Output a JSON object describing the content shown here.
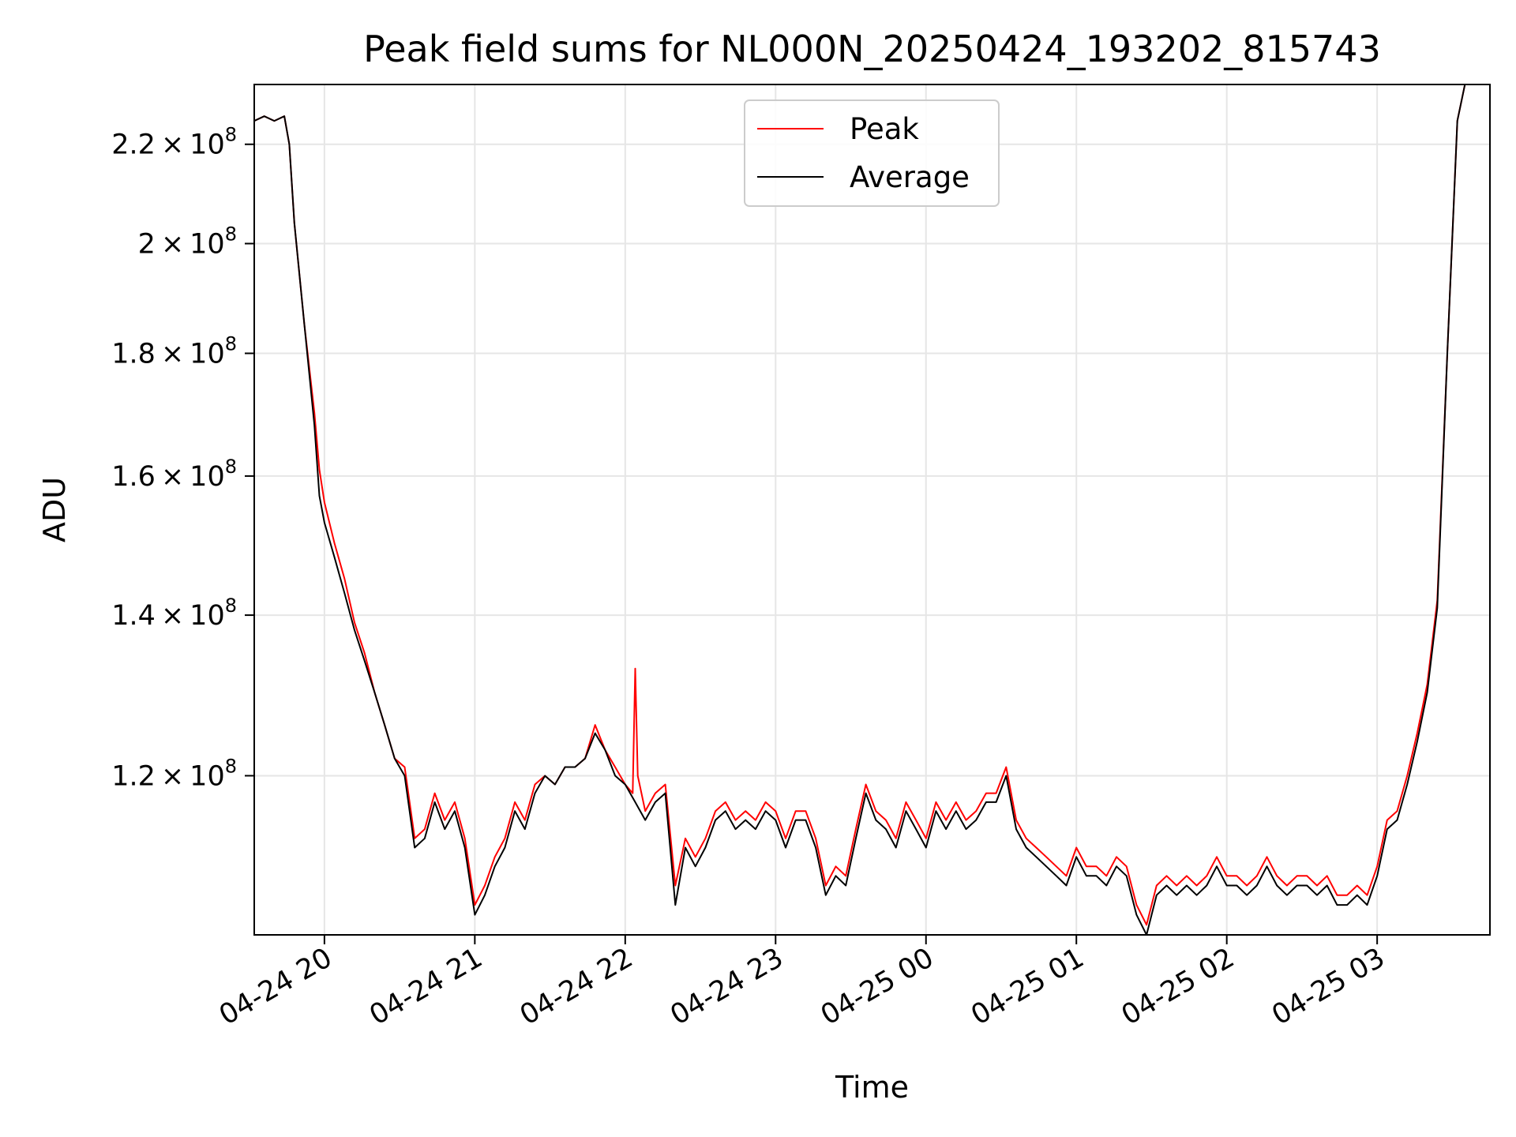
{
  "chart_data": {
    "type": "line",
    "title": "Peak field sums for NL000N_20250424_193202_815743",
    "xlabel": "Time",
    "ylabel": "ADU",
    "xlim": [
      "2025-04-24 19:32",
      "2025-04-25 03:45"
    ],
    "ylim": [
      103000000,
      233000000
    ],
    "y_scale": "log",
    "grid": true,
    "legend_position": "upper center",
    "x_ticks": [
      {
        "value": "2025-04-24 20:00",
        "label": "04-24 20"
      },
      {
        "value": "2025-04-24 21:00",
        "label": "04-24 21"
      },
      {
        "value": "2025-04-24 22:00",
        "label": "04-24 22"
      },
      {
        "value": "2025-04-24 23:00",
        "label": "04-24 23"
      },
      {
        "value": "2025-04-25 00:00",
        "label": "04-25 00"
      },
      {
        "value": "2025-04-25 01:00",
        "label": "04-25 01"
      },
      {
        "value": "2025-04-25 02:00",
        "label": "04-25 02"
      },
      {
        "value": "2025-04-25 03:00",
        "label": "04-25 03"
      }
    ],
    "y_ticks": [
      {
        "value": 120000000,
        "mantissa": "1.2",
        "base": "10",
        "exp": "8"
      },
      {
        "value": 140000000,
        "mantissa": "1.4",
        "base": "10",
        "exp": "8"
      },
      {
        "value": 160000000,
        "mantissa": "1.6",
        "base": "10",
        "exp": "8"
      },
      {
        "value": 180000000,
        "mantissa": "1.8",
        "base": "10",
        "exp": "8"
      },
      {
        "value": 200000000,
        "mantissa": "2",
        "base": "10",
        "exp": "8"
      },
      {
        "value": 220000000,
        "mantissa": "2.2",
        "base": "10",
        "exp": "8"
      }
    ],
    "series": [
      {
        "name": "Peak",
        "color": "#ff0000",
        "x": [
          "2025-04-24 19:32",
          "2025-04-24 19:36",
          "2025-04-24 19:40",
          "2025-04-24 19:44",
          "2025-04-24 19:46",
          "2025-04-24 19:48",
          "2025-04-24 19:52",
          "2025-04-24 19:56",
          "2025-04-24 19:58",
          "2025-04-24 20:00",
          "2025-04-24 20:04",
          "2025-04-24 20:08",
          "2025-04-24 20:12",
          "2025-04-24 20:16",
          "2025-04-24 20:20",
          "2025-04-24 20:24",
          "2025-04-24 20:28",
          "2025-04-24 20:32",
          "2025-04-24 20:36",
          "2025-04-24 20:40",
          "2025-04-24 20:44",
          "2025-04-24 20:48",
          "2025-04-24 20:52",
          "2025-04-24 20:56",
          "2025-04-24 21:00",
          "2025-04-24 21:04",
          "2025-04-24 21:08",
          "2025-04-24 21:12",
          "2025-04-24 21:16",
          "2025-04-24 21:20",
          "2025-04-24 21:24",
          "2025-04-24 21:28",
          "2025-04-24 21:32",
          "2025-04-24 21:36",
          "2025-04-24 21:40",
          "2025-04-24 21:44",
          "2025-04-24 21:48",
          "2025-04-24 21:52",
          "2025-04-24 21:56",
          "2025-04-24 22:00",
          "2025-04-24 22:03",
          "2025-04-24 22:04",
          "2025-04-24 22:05",
          "2025-04-24 22:08",
          "2025-04-24 22:12",
          "2025-04-24 22:16",
          "2025-04-24 22:20",
          "2025-04-24 22:24",
          "2025-04-24 22:28",
          "2025-04-24 22:32",
          "2025-04-24 22:36",
          "2025-04-24 22:40",
          "2025-04-24 22:44",
          "2025-04-24 22:48",
          "2025-04-24 22:52",
          "2025-04-24 22:56",
          "2025-04-24 23:00",
          "2025-04-24 23:04",
          "2025-04-24 23:08",
          "2025-04-24 23:12",
          "2025-04-24 23:16",
          "2025-04-24 23:20",
          "2025-04-24 23:24",
          "2025-04-24 23:28",
          "2025-04-24 23:32",
          "2025-04-24 23:36",
          "2025-04-24 23:40",
          "2025-04-24 23:44",
          "2025-04-24 23:48",
          "2025-04-24 23:52",
          "2025-04-24 23:56",
          "2025-04-25 00:00",
          "2025-04-25 00:04",
          "2025-04-25 00:08",
          "2025-04-25 00:12",
          "2025-04-25 00:16",
          "2025-04-25 00:20",
          "2025-04-25 00:24",
          "2025-04-25 00:28",
          "2025-04-25 00:32",
          "2025-04-25 00:36",
          "2025-04-25 00:40",
          "2025-04-25 00:44",
          "2025-04-25 00:48",
          "2025-04-25 00:52",
          "2025-04-25 00:56",
          "2025-04-25 01:00",
          "2025-04-25 01:04",
          "2025-04-25 01:08",
          "2025-04-25 01:12",
          "2025-04-25 01:16",
          "2025-04-25 01:20",
          "2025-04-25 01:24",
          "2025-04-25 01:28",
          "2025-04-25 01:32",
          "2025-04-25 01:36",
          "2025-04-25 01:40",
          "2025-04-25 01:44",
          "2025-04-25 01:48",
          "2025-04-25 01:52",
          "2025-04-25 01:56",
          "2025-04-25 02:00",
          "2025-04-25 02:04",
          "2025-04-25 02:08",
          "2025-04-25 02:12",
          "2025-04-25 02:16",
          "2025-04-25 02:20",
          "2025-04-25 02:24",
          "2025-04-25 02:28",
          "2025-04-25 02:32",
          "2025-04-25 02:36",
          "2025-04-25 02:40",
          "2025-04-25 02:44",
          "2025-04-25 02:48",
          "2025-04-25 02:52",
          "2025-04-25 02:56",
          "2025-04-25 03:00",
          "2025-04-25 03:04",
          "2025-04-25 03:08",
          "2025-04-25 03:12",
          "2025-04-25 03:16",
          "2025-04-25 03:20",
          "2025-04-25 03:24",
          "2025-04-25 03:28",
          "2025-04-25 03:32",
          "2025-04-25 03:35"
        ],
        "y": [
          225000000,
          226000000,
          225000000,
          226000000,
          220000000,
          204000000,
          185000000,
          170000000,
          161000000,
          156000000,
          150000000,
          145000000,
          139000000,
          135000000,
          130000000,
          126000000,
          122000000,
          121000000,
          113000000,
          114000000,
          118000000,
          115000000,
          117000000,
          113000000,
          106000000,
          108000000,
          111000000,
          113000000,
          117000000,
          115000000,
          119000000,
          120000000,
          119000000,
          121000000,
          121000000,
          122000000,
          126000000,
          123000000,
          121000000,
          119000000,
          118000000,
          133000000,
          120000000,
          116000000,
          118000000,
          119000000,
          108000000,
          113000000,
          111000000,
          113000000,
          116000000,
          117000000,
          115000000,
          116000000,
          115000000,
          117000000,
          116000000,
          113000000,
          116000000,
          116000000,
          113000000,
          108000000,
          110000000,
          109000000,
          114000000,
          119000000,
          116000000,
          115000000,
          113000000,
          117000000,
          115000000,
          113000000,
          117000000,
          115000000,
          117000000,
          115000000,
          116000000,
          118000000,
          118000000,
          121000000,
          115000000,
          113000000,
          112000000,
          111000000,
          110000000,
          109000000,
          112000000,
          110000000,
          110000000,
          109000000,
          111000000,
          110000000,
          106000000,
          104000000,
          108000000,
          109000000,
          108000000,
          109000000,
          108000000,
          109000000,
          111000000,
          109000000,
          109000000,
          108000000,
          109000000,
          111000000,
          109000000,
          108000000,
          109000000,
          109000000,
          108000000,
          109000000,
          107000000,
          107000000,
          108000000,
          107000000,
          110000000,
          115000000,
          116000000,
          120000000,
          125000000,
          131000000,
          142000000,
          180000000,
          225000000,
          233000000
        ]
      },
      {
        "name": "Average",
        "color": "#000000",
        "x": [
          "2025-04-24 19:32",
          "2025-04-24 19:36",
          "2025-04-24 19:40",
          "2025-04-24 19:44",
          "2025-04-24 19:46",
          "2025-04-24 19:48",
          "2025-04-24 19:52",
          "2025-04-24 19:56",
          "2025-04-24 19:58",
          "2025-04-24 20:00",
          "2025-04-24 20:04",
          "2025-04-24 20:08",
          "2025-04-24 20:12",
          "2025-04-24 20:16",
          "2025-04-24 20:20",
          "2025-04-24 20:24",
          "2025-04-24 20:28",
          "2025-04-24 20:32",
          "2025-04-24 20:36",
          "2025-04-24 20:40",
          "2025-04-24 20:44",
          "2025-04-24 20:48",
          "2025-04-24 20:52",
          "2025-04-24 20:56",
          "2025-04-24 21:00",
          "2025-04-24 21:04",
          "2025-04-24 21:08",
          "2025-04-24 21:12",
          "2025-04-24 21:16",
          "2025-04-24 21:20",
          "2025-04-24 21:24",
          "2025-04-24 21:28",
          "2025-04-24 21:32",
          "2025-04-24 21:36",
          "2025-04-24 21:40",
          "2025-04-24 21:44",
          "2025-04-24 21:48",
          "2025-04-24 21:52",
          "2025-04-24 21:56",
          "2025-04-24 22:00",
          "2025-04-24 22:04",
          "2025-04-24 22:08",
          "2025-04-24 22:12",
          "2025-04-24 22:16",
          "2025-04-24 22:20",
          "2025-04-24 22:24",
          "2025-04-24 22:28",
          "2025-04-24 22:32",
          "2025-04-24 22:36",
          "2025-04-24 22:40",
          "2025-04-24 22:44",
          "2025-04-24 22:48",
          "2025-04-24 22:52",
          "2025-04-24 22:56",
          "2025-04-24 23:00",
          "2025-04-24 23:04",
          "2025-04-24 23:08",
          "2025-04-24 23:12",
          "2025-04-24 23:16",
          "2025-04-24 23:20",
          "2025-04-24 23:24",
          "2025-04-24 23:28",
          "2025-04-24 23:32",
          "2025-04-24 23:36",
          "2025-04-24 23:40",
          "2025-04-24 23:44",
          "2025-04-24 23:48",
          "2025-04-24 23:52",
          "2025-04-24 23:56",
          "2025-04-25 00:00",
          "2025-04-25 00:04",
          "2025-04-25 00:08",
          "2025-04-25 00:12",
          "2025-04-25 00:16",
          "2025-04-25 00:20",
          "2025-04-25 00:24",
          "2025-04-25 00:28",
          "2025-04-25 00:32",
          "2025-04-25 00:36",
          "2025-04-25 00:40",
          "2025-04-25 00:44",
          "2025-04-25 00:48",
          "2025-04-25 00:52",
          "2025-04-25 00:56",
          "2025-04-25 01:00",
          "2025-04-25 01:04",
          "2025-04-25 01:08",
          "2025-04-25 01:12",
          "2025-04-25 01:16",
          "2025-04-25 01:20",
          "2025-04-25 01:24",
          "2025-04-25 01:28",
          "2025-04-25 01:32",
          "2025-04-25 01:36",
          "2025-04-25 01:40",
          "2025-04-25 01:44",
          "2025-04-25 01:48",
          "2025-04-25 01:52",
          "2025-04-25 01:56",
          "2025-04-25 02:00",
          "2025-04-25 02:04",
          "2025-04-25 02:08",
          "2025-04-25 02:12",
          "2025-04-25 02:16",
          "2025-04-25 02:20",
          "2025-04-25 02:24",
          "2025-04-25 02:28",
          "2025-04-25 02:32",
          "2025-04-25 02:36",
          "2025-04-25 02:40",
          "2025-04-25 02:44",
          "2025-04-25 02:48",
          "2025-04-25 02:52",
          "2025-04-25 02:56",
          "2025-04-25 03:00",
          "2025-04-25 03:04",
          "2025-04-25 03:08",
          "2025-04-25 03:12",
          "2025-04-25 03:16",
          "2025-04-25 03:20",
          "2025-04-25 03:24",
          "2025-04-25 03:28",
          "2025-04-25 03:32",
          "2025-04-25 03:35"
        ],
        "y": [
          225000000,
          226000000,
          225000000,
          226000000,
          220000000,
          204000000,
          185000000,
          168000000,
          157000000,
          153000000,
          148000000,
          143000000,
          138000000,
          134000000,
          130000000,
          126000000,
          122000000,
          120000000,
          112000000,
          113000000,
          117000000,
          114000000,
          116000000,
          112000000,
          105000000,
          107000000,
          110000000,
          112000000,
          116000000,
          114000000,
          118000000,
          120000000,
          119000000,
          121000000,
          121000000,
          122000000,
          125000000,
          123000000,
          120000000,
          119000000,
          117000000,
          115000000,
          117000000,
          118000000,
          106000000,
          112000000,
          110000000,
          112000000,
          115000000,
          116000000,
          114000000,
          115000000,
          114000000,
          116000000,
          115000000,
          112000000,
          115000000,
          115000000,
          112000000,
          107000000,
          109000000,
          108000000,
          113000000,
          118000000,
          115000000,
          114000000,
          112000000,
          116000000,
          114000000,
          112000000,
          116000000,
          114000000,
          116000000,
          114000000,
          115000000,
          117000000,
          117000000,
          120000000,
          114000000,
          112000000,
          111000000,
          110000000,
          109000000,
          108000000,
          111000000,
          109000000,
          109000000,
          108000000,
          110000000,
          109000000,
          105000000,
          103000000,
          107000000,
          108000000,
          107000000,
          108000000,
          107000000,
          108000000,
          110000000,
          108000000,
          108000000,
          107000000,
          108000000,
          110000000,
          108000000,
          107000000,
          108000000,
          108000000,
          107000000,
          108000000,
          106000000,
          106000000,
          107000000,
          106000000,
          109000000,
          114000000,
          115000000,
          119000000,
          124000000,
          130000000,
          141000000,
          180000000,
          225000000,
          233000000
        ]
      }
    ]
  }
}
